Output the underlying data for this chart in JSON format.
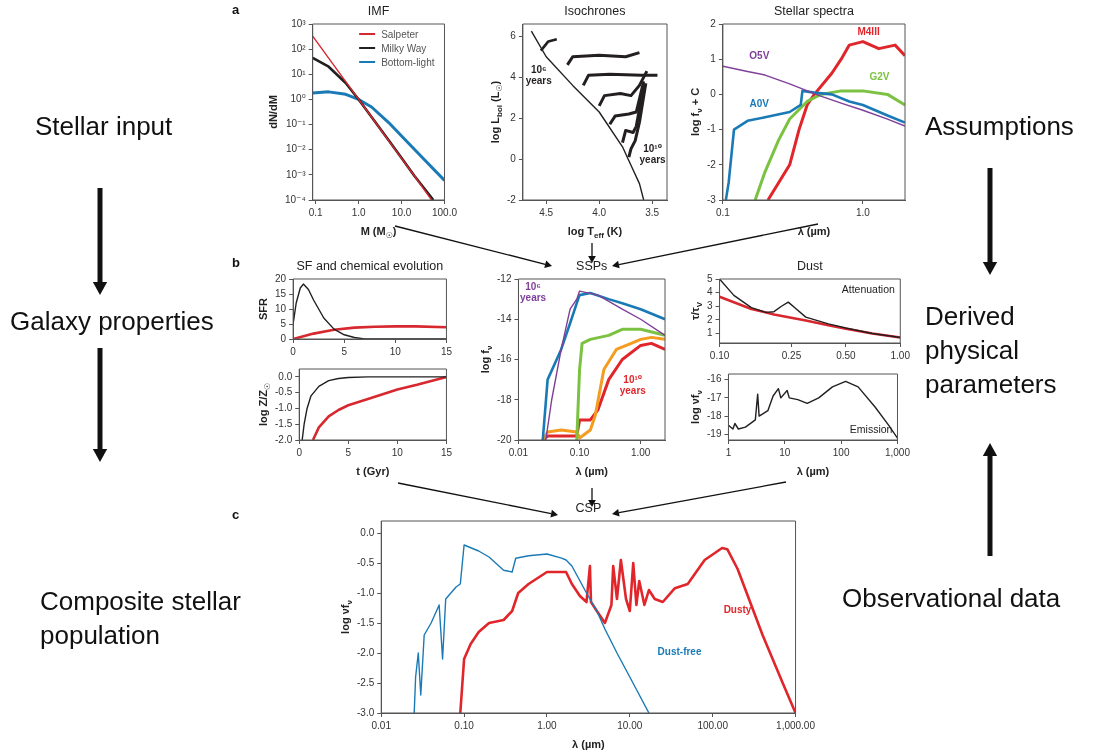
{
  "chart_data": [
    {
      "type": "line",
      "title": "IMF",
      "xlabel": "M (M$_{☉}$)",
      "ylabel": "dN/dM",
      "annotations": [
        "a"
      ],
      "log": "xy",
      "legend": "top right",
      "xlim": [
        0.085,
        100
      ],
      "ylim": [
        0.0001,
        1000
      ],
      "xticks": [
        0.1,
        {
          "value": 1,
          "label": "1.0"
        },
        {
          "value": 10,
          "label": "10.0"
        },
        {
          "value": 100,
          "label": "100.0"
        }
      ],
      "yticks": [
        {
          "value": 0.0001,
          "label": "10⁻⁴"
        },
        {
          "value": 0.001,
          "label": "10⁻³"
        },
        {
          "value": 0.01,
          "label": "10⁻²"
        },
        {
          "value": 0.1,
          "label": "10⁻¹"
        },
        {
          "value": 1,
          "label": "10⁰"
        },
        {
          "value": 10,
          "label": "10¹"
        },
        {
          "value": 100,
          "label": "10²"
        },
        {
          "value": 1000,
          "label": "10³"
        }
      ],
      "series": [
        {
          "name": "Salpeter",
          "color": "#d7282f",
          "x": [
            0.085,
            0.2,
            0.5,
            1,
            2,
            5,
            10,
            20,
            50
          ],
          "values": [
            330,
            44,
            5.1,
            1,
            0.2,
            0.023,
            0.0045,
            0.0009,
            0.0001
          ]
        },
        {
          "name": "Milky Way",
          "color": "#231f20",
          "x": [
            0.085,
            0.2,
            0.5,
            1,
            2,
            5,
            10,
            20,
            55
          ],
          "values": [
            45,
            20,
            4.5,
            1,
            0.2,
            0.024,
            0.0047,
            0.0009,
            0.0001
          ]
        },
        {
          "name": "Bottom-light",
          "color": "#1a7ab5",
          "x": [
            0.085,
            0.2,
            0.5,
            1,
            2,
            5,
            10,
            30,
            100
          ],
          "values": [
            1.8,
            2,
            1.6,
            1,
            0.5,
            0.12,
            0.035,
            0.005,
            0.0006
          ]
        }
      ]
    },
    {
      "type": "line",
      "title": "Isochrones",
      "xlabel": "log T$_{eff}$ (K)",
      "ylabel": "log L$_{bol}$ (L$_{☉}$)",
      "xlim": [
        4.72,
        3.36
      ],
      "ylim": [
        -2,
        6.6
      ],
      "xticks": [
        4.5,
        {
          "value": 4,
          "label": "4.0"
        },
        3.5
      ],
      "yticks": [
        -2,
        0,
        2,
        4,
        6
      ],
      "series": [
        {
          "name": "10⁶ years",
          "color": "#231f20",
          "x": [
            4.64,
            4.5,
            4.25,
            4.0,
            3.78,
            3.7,
            3.62,
            3.58
          ],
          "values": [
            6.25,
            5.0,
            3.6,
            2.3,
            0.6,
            -0.3,
            -1.2,
            -2
          ]
        },
        {
          "color": "#231f20",
          "x": [
            4.55,
            4.48,
            4.4
          ],
          "values": [
            5.3,
            5.75,
            5.85
          ]
        },
        {
          "color": "#231f20",
          "x": [
            4.3,
            4.25,
            4.0,
            3.75,
            3.62
          ],
          "values": [
            4.6,
            5.0,
            5.07,
            5.0,
            5.2
          ]
        },
        {
          "color": "#231f20",
          "x": [
            4.15,
            4.1,
            3.9,
            3.6,
            3.45
          ],
          "values": [
            3.6,
            4.1,
            4.14,
            4.1,
            4.1
          ]
        },
        {
          "color": "#231f20",
          "x": [
            4.0,
            3.95,
            3.8,
            3.7,
            3.62,
            3.55
          ],
          "values": [
            2.6,
            3.1,
            3.2,
            3.1,
            3.6,
            4.3
          ]
        },
        {
          "color": "#231f20",
          "x": [
            3.9,
            3.85,
            3.72,
            3.65,
            3.58
          ],
          "values": [
            1.7,
            2.1,
            2.2,
            2.3,
            3.8
          ]
        },
        {
          "color": "#231f20",
          "x": [
            3.78,
            3.75,
            3.68,
            3.65,
            3.58
          ],
          "values": [
            0.8,
            1.4,
            1.3,
            1.6,
            3.6
          ]
        },
        {
          "name": "10¹⁰ years",
          "color": "#231f20",
          "x": [
            3.72,
            3.7,
            3.66,
            3.62,
            3.56
          ],
          "values": [
            0.1,
            0.5,
            0.9,
            1.8,
            3.7
          ]
        }
      ]
    },
    {
      "type": "line",
      "title": "Stellar spectra",
      "xlabel": "λ (µm)",
      "ylabel": "log f$_{ν}$ + C",
      "log": "x",
      "xlim": [
        0.1,
        2
      ],
      "ylim": [
        -3,
        2
      ],
      "xticks": [
        0.1,
        {
          "value": 1,
          "label": "1.0"
        }
      ],
      "yticks": [
        -3,
        -2,
        -1,
        0,
        1,
        2
      ],
      "series": [
        {
          "name": "O5V",
          "color": "#7f3f98",
          "x": [
            0.1,
            0.15,
            0.2,
            0.3,
            0.5,
            0.7,
            1,
            1.5,
            2
          ],
          "values": [
            0.8,
            0.65,
            0.55,
            0.3,
            -0.05,
            -0.25,
            -0.45,
            -0.7,
            -0.9
          ]
        },
        {
          "name": "A0V",
          "color": "#1a7ab5",
          "x": [
            0.105,
            0.11,
            0.12,
            0.15,
            0.2,
            0.3,
            0.36,
            0.37,
            0.45,
            0.6,
            0.8,
            1,
            1.5,
            2
          ],
          "values": [
            -3,
            -2.5,
            -1,
            -0.75,
            -0.65,
            -0.5,
            -0.3,
            0.1,
            0.05,
            0,
            -0.2,
            -0.3,
            -0.6,
            -0.8
          ]
        },
        {
          "name": "G2V",
          "color": "#7cc242",
          "x": [
            0.17,
            0.2,
            0.25,
            0.3,
            0.4,
            0.5,
            0.7,
            1,
            1.5,
            2
          ],
          "values": [
            -3,
            -2.2,
            -1.3,
            -0.7,
            -0.2,
            0,
            0.1,
            0.1,
            0,
            -0.3
          ]
        },
        {
          "name": "M4III",
          "color": "#e0262b",
          "x": [
            0.21,
            0.3,
            0.35,
            0.4,
            0.45,
            0.6,
            0.7,
            0.8,
            1,
            1.3,
            1.7,
            2
          ],
          "values": [
            -3,
            -2,
            -1,
            -0.3,
            0,
            0.6,
            1.0,
            1.4,
            1.5,
            1.3,
            1.4,
            1.1
          ]
        }
      ]
    },
    {
      "type": "line",
      "title": "SF and chemical evolution",
      "ylabel": "SFR",
      "annotations": [
        "b"
      ],
      "xlim": [
        0,
        15
      ],
      "ylim": [
        0,
        20
      ],
      "xticks": [
        0,
        5,
        10,
        15
      ],
      "yticks": [
        0,
        5,
        10,
        15,
        20
      ],
      "series": [
        {
          "color": "#231f20",
          "x": [
            0,
            0.3,
            0.7,
            1,
            1.5,
            2,
            3,
            4,
            5,
            6,
            7,
            8,
            10,
            15
          ],
          "values": [
            5,
            12,
            17,
            18.3,
            16.5,
            13,
            7,
            3.3,
            1.4,
            0.5,
            0,
            0,
            0,
            0
          ]
        },
        {
          "color": "#d7282f",
          "x": [
            0,
            2,
            4,
            6,
            8,
            10,
            12,
            15
          ],
          "values": [
            0,
            1.8,
            3.1,
            3.8,
            4.1,
            4.2,
            4.2,
            3.9
          ]
        }
      ]
    },
    {
      "type": "line",
      "xlabel": "t (Gyr)",
      "ylabel": "log Z/Z$_{☉}$",
      "xlim": [
        0,
        15
      ],
      "ylim": [
        -2,
        0.25
      ],
      "xticks": [
        0,
        5,
        10,
        15
      ],
      "yticks": [
        {
          "value": 0,
          "label": "0.0"
        },
        -0.5,
        {
          "value": -1,
          "label": "-1.0"
        },
        -1.5,
        {
          "value": -2,
          "label": "-2.0"
        }
      ],
      "series": [
        {
          "color": "#231f20",
          "x": [
            0.3,
            0.5,
            0.8,
            1.2,
            2,
            3,
            4,
            5,
            7,
            15
          ],
          "values": [
            -2,
            -1.5,
            -1,
            -0.6,
            -0.3,
            -0.12,
            -0.05,
            -0.02,
            0,
            0
          ]
        },
        {
          "color": "#d7282f",
          "x": [
            1.4,
            2,
            3,
            4,
            5,
            7,
            10,
            12,
            15
          ],
          "values": [
            -2,
            -1.6,
            -1.25,
            -1.05,
            -0.9,
            -0.7,
            -0.4,
            -0.25,
            0
          ]
        }
      ]
    },
    {
      "type": "line",
      "title": "SSPs",
      "xlabel": "λ (µm)",
      "ylabel": "log f$_{ν}$",
      "log": "x",
      "xlim": [
        0.01,
        2.5
      ],
      "ylim": [
        -20,
        -12
      ],
      "xticks": [
        0.01,
        {
          "value": 0.1,
          "label": "0.10"
        },
        {
          "value": 1,
          "label": "1.00"
        }
      ],
      "yticks": [
        -20,
        -18,
        -16,
        -14,
        -12
      ],
      "series": [
        {
          "name": "10⁶ years",
          "color": "#7f3f98",
          "x": [
            0.028,
            0.035,
            0.05,
            0.07,
            0.09,
            0.1,
            0.2,
            0.5,
            1,
            2.5
          ],
          "values": [
            -20,
            -18,
            -15.5,
            -13.5,
            -13,
            -12.6,
            -12.8,
            -13.5,
            -14.0,
            -14.8
          ]
        },
        {
          "color": "#1a7ab5",
          "x": [
            0.025,
            0.03,
            0.05,
            0.07,
            0.09,
            0.1,
            0.15,
            0.3,
            0.5,
            1,
            2.5
          ],
          "values": [
            -20,
            -17,
            -15.5,
            -14.2,
            -13.2,
            -12.8,
            -12.7,
            -13,
            -13.2,
            -13.5,
            -14.0
          ]
        },
        {
          "color": "#7cc242",
          "x": [
            0.09,
            0.1,
            0.11,
            0.15,
            0.3,
            0.5,
            1,
            2.5
          ],
          "values": [
            -20,
            -16.5,
            -15.2,
            -15.0,
            -14.8,
            -14.5,
            -14.5,
            -14.8
          ]
        },
        {
          "color": "#f39c1f",
          "x": [
            0.025,
            0.03,
            0.05,
            0.09,
            0.1,
            0.15,
            0.18,
            0.25,
            0.4,
            0.7,
            1,
            1.5,
            2.5
          ],
          "values": [
            -20,
            -19.6,
            -19.5,
            -19.6,
            -19.9,
            -19.5,
            -18.8,
            -16.5,
            -15.5,
            -15.2,
            -15.0,
            -14.9,
            -15.0
          ]
        },
        {
          "name": "10¹⁰ years",
          "color": "#e0262b",
          "x": [
            0.025,
            0.03,
            0.05,
            0.09,
            0.1,
            0.15,
            0.2,
            0.3,
            0.5,
            1,
            1.5,
            2.5
          ],
          "values": [
            -20,
            -19.8,
            -19.8,
            -19.8,
            -19,
            -19,
            -18.5,
            -17,
            -16.0,
            -15.3,
            -15.2,
            -15.5
          ]
        }
      ]
    },
    {
      "type": "line",
      "title": "Dust",
      "ylabel": "τ/τ$_{V}$",
      "annotations": [
        "Attenuation"
      ],
      "log": "x",
      "xlim": [
        0.1,
        1
      ],
      "ylim": [
        0.3,
        5
      ],
      "xticks": [
        {
          "value": 0.1,
          "label": "0.10"
        },
        0.25,
        {
          "value": 0.5,
          "label": "0.50"
        },
        {
          "value": 1,
          "label": "1.00"
        }
      ],
      "yticks": [
        1,
        2,
        3,
        4,
        5
      ],
      "series": [
        {
          "color": "#231f20",
          "x": [
            0.1,
            0.12,
            0.15,
            0.18,
            0.2,
            0.22,
            0.24,
            0.26,
            0.3,
            0.4,
            0.5,
            0.7,
            1
          ],
          "values": [
            5,
            3.8,
            2.9,
            2.55,
            2.6,
            3.0,
            3.3,
            2.9,
            2.2,
            1.7,
            1.4,
            1.0,
            0.7
          ]
        },
        {
          "color": "#d7282f",
          "x": [
            0.1,
            0.15,
            0.2,
            0.3,
            0.4,
            0.5,
            0.7,
            1
          ],
          "values": [
            3.7,
            2.8,
            2.4,
            1.95,
            1.6,
            1.35,
            1.0,
            0.7
          ]
        }
      ]
    },
    {
      "type": "line",
      "xlabel": "λ (µm)",
      "ylabel": "log νf$_{ν}$",
      "annotations": [
        "Emission"
      ],
      "log": "x",
      "xlim": [
        1,
        1000
      ],
      "ylim": [
        -19.3,
        -15.7
      ],
      "xticks": [
        1,
        10,
        100,
        {
          "value": 1000,
          "label": "1,000"
        }
      ],
      "yticks": [
        -19,
        -18,
        -17,
        -16
      ],
      "series": [
        {
          "color": "#231f20",
          "x": [
            1,
            1.2,
            1.3,
            1.5,
            2,
            3,
            3.3,
            3.5,
            5,
            6.2,
            7.7,
            8.5,
            11,
            12,
            17,
            25,
            40,
            70,
            120,
            200,
            400,
            700,
            1000
          ],
          "values": [
            -18.5,
            -18.7,
            -18.4,
            -18.7,
            -18.6,
            -18.2,
            -16.8,
            -18,
            -17.7,
            -16.9,
            -16.5,
            -17,
            -16.6,
            -17,
            -17.1,
            -17.3,
            -17,
            -16.4,
            -16.1,
            -16.4,
            -17.5,
            -18.5,
            -19.2
          ]
        }
      ]
    },
    {
      "type": "line",
      "title": "CSP",
      "xlabel": "λ (µm)",
      "ylabel": "log νf$_{ν}$",
      "annotations": [
        "c"
      ],
      "log": "x",
      "xlim": [
        0.01,
        1000
      ],
      "ylim": [
        -3,
        0.2
      ],
      "xticks": [
        0.01,
        {
          "value": 0.1,
          "label": "0.10"
        },
        {
          "value": 1,
          "label": "1.00"
        },
        {
          "value": 10,
          "label": "10.00"
        },
        {
          "value": 100,
          "label": "100.00"
        },
        {
          "value": 1000,
          "label": "1,000.00"
        }
      ],
      "yticks": [
        {
          "value": -3,
          "label": "-3.0"
        },
        -2.5,
        {
          "value": -2,
          "label": "-2.0"
        },
        -1.5,
        {
          "value": -1,
          "label": "-1.0"
        },
        -0.5,
        {
          "value": 0,
          "label": "0.0"
        }
      ],
      "series": [
        {
          "name": "Dust-free",
          "color": "#1a7ab5",
          "x": [
            0.025,
            0.026,
            0.028,
            0.03,
            0.033,
            0.04,
            0.05,
            0.055,
            0.06,
            0.08,
            0.09,
            0.1,
            0.15,
            0.2,
            0.3,
            0.38,
            0.42,
            0.6,
            1,
            1.5,
            1.7,
            2,
            3,
            4,
            5,
            7,
            10,
            17
          ],
          "values": [
            -3,
            -2.4,
            -2.0,
            -2.7,
            -1.7,
            -1.5,
            -1.2,
            -2.1,
            -1.1,
            -0.9,
            -0.85,
            -0.2,
            -0.3,
            -0.4,
            -0.62,
            -0.65,
            -0.42,
            -0.38,
            -0.35,
            -0.42,
            -0.45,
            -0.55,
            -1,
            -1.3,
            -1.6,
            -2,
            -2.4,
            -3
          ]
        },
        {
          "name": "Dusty",
          "color": "#e0262b",
          "x": [
            0.09,
            0.1,
            0.12,
            0.15,
            0.2,
            0.3,
            0.38,
            0.45,
            0.6,
            1,
            1.5,
            1.7,
            2,
            2.5,
            3,
            3.3,
            3.4,
            4,
            5,
            6,
            6.3,
            7,
            7.8,
            9,
            10,
            11,
            12,
            13,
            15,
            17,
            20,
            25,
            35,
            50,
            80,
            130,
            150,
            200,
            400,
            700,
            1000
          ],
          "values": [
            -3,
            -2.1,
            -1.85,
            -1.65,
            -1.5,
            -1.45,
            -1.3,
            -1.0,
            -0.85,
            -0.65,
            -0.65,
            -0.65,
            -0.85,
            -1.05,
            -1.15,
            -0.55,
            -1.15,
            -1.3,
            -1.5,
            -1.2,
            -0.55,
            -1.1,
            -0.45,
            -1.1,
            -1.3,
            -0.5,
            -1.2,
            -0.8,
            -1.2,
            -0.95,
            -1.1,
            -1.15,
            -0.92,
            -0.85,
            -0.45,
            -0.25,
            -0.27,
            -0.6,
            -1.7,
            -2.5,
            -3
          ]
        }
      ]
    },
    {
      "type": "other",
      "annotations": [
        "Stellar input",
        "Galaxy properties",
        "Composite stellar population",
        "Assumptions",
        "Derived physical parameters",
        "Observational data"
      ]
    }
  ]
}
